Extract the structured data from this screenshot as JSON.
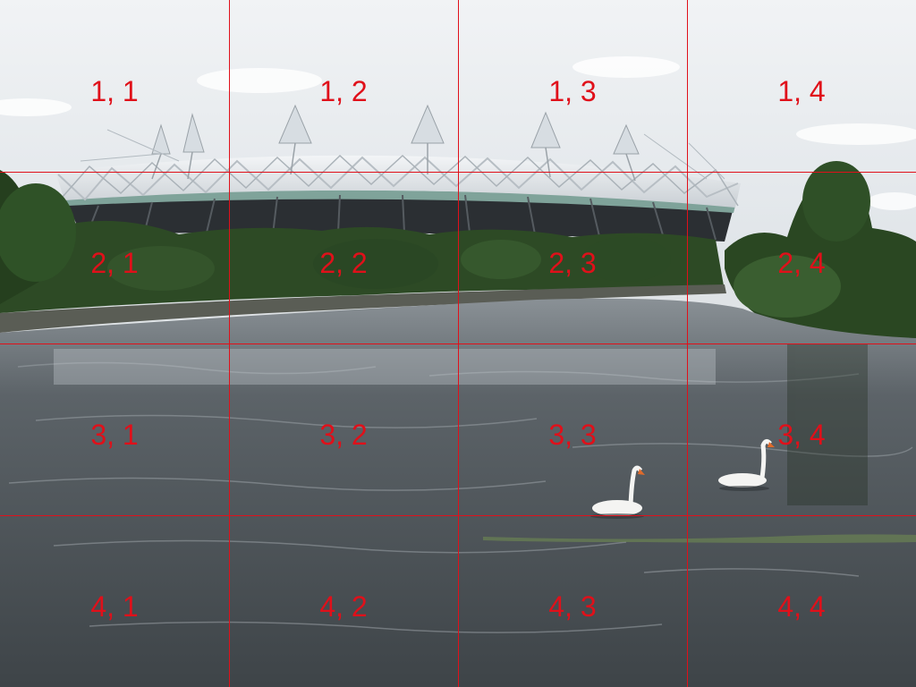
{
  "grid": {
    "line_color": "#e0101a",
    "label_color": "#e0101a",
    "cells": [
      {
        "row": 1,
        "col": 1,
        "label": "1, 1"
      },
      {
        "row": 1,
        "col": 2,
        "label": "1, 2"
      },
      {
        "row": 1,
        "col": 3,
        "label": "1, 3"
      },
      {
        "row": 1,
        "col": 4,
        "label": "1, 4"
      },
      {
        "row": 2,
        "col": 1,
        "label": "2, 1"
      },
      {
        "row": 2,
        "col": 2,
        "label": "2, 2"
      },
      {
        "row": 2,
        "col": 3,
        "label": "2, 3"
      },
      {
        "row": 2,
        "col": 4,
        "label": "2, 4"
      },
      {
        "row": 3,
        "col": 1,
        "label": "3, 1"
      },
      {
        "row": 3,
        "col": 2,
        "label": "3, 2"
      },
      {
        "row": 3,
        "col": 3,
        "label": "3, 3"
      },
      {
        "row": 3,
        "col": 4,
        "label": "3, 4"
      },
      {
        "row": 4,
        "col": 1,
        "label": "4, 1"
      },
      {
        "row": 4,
        "col": 2,
        "label": "4, 2"
      },
      {
        "row": 4,
        "col": 3,
        "label": "4, 3"
      },
      {
        "row": 4,
        "col": 4,
        "label": "4, 4"
      }
    ]
  },
  "photo": {
    "sky_color": "#e9ecef",
    "water_color": "#4f555a",
    "foliage_color": "#2d4a25",
    "stadium_color": "#e4e8ec"
  }
}
